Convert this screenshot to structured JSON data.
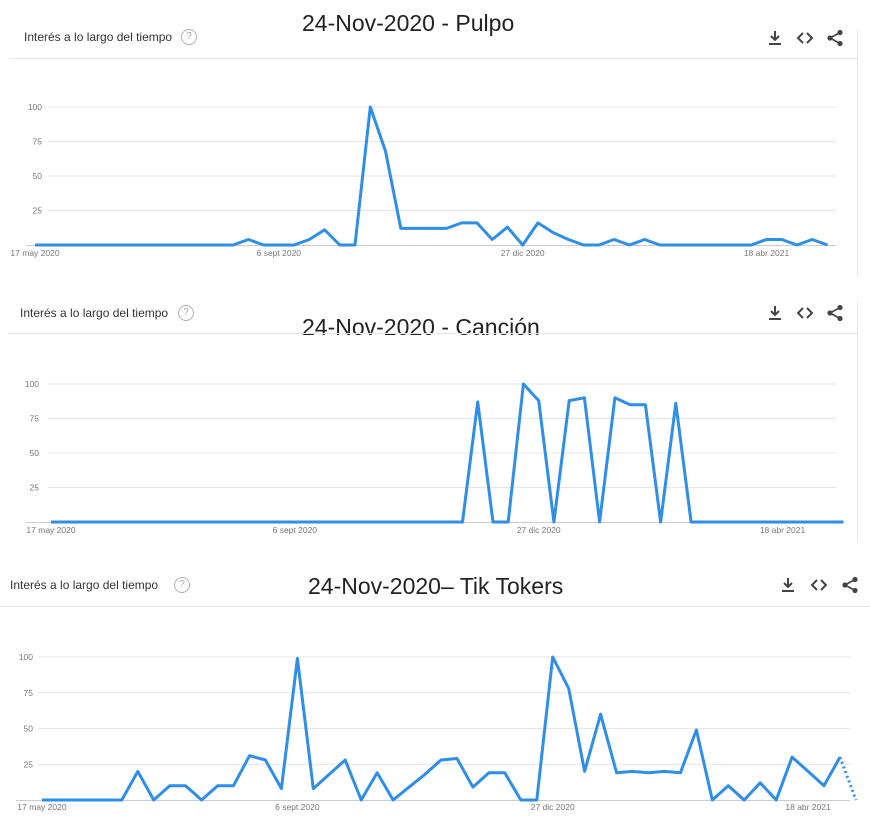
{
  "colors": {
    "line": "#2f8ee8",
    "grid": "#e6e6e6",
    "text": "#333333",
    "tick": "#777777"
  },
  "icons": [
    "download-icon",
    "embed-code-icon",
    "share-icon"
  ],
  "panels": [
    {
      "header": "Interés a lo largo del tiempo",
      "help": "?",
      "title": "24-Nov-2020 - Pulpo"
    },
    {
      "header": "Interés a lo largo del tiempo",
      "help": "?",
      "title": "24-Nov-2020 - Canción"
    },
    {
      "header": "Interés a lo largo del tiempo",
      "help": "?",
      "title": "24-Nov-2020– Tik Tokers"
    }
  ],
  "chart_data": [
    {
      "type": "line",
      "title": "24-Nov-2020 - Pulpo",
      "ylim": [
        0,
        100
      ],
      "yticks": [
        25,
        50,
        75,
        100
      ],
      "xticks": [
        "17 may 2020",
        "6 sept 2020",
        "27 dic 2020",
        "18 abr 2021"
      ],
      "xtick_index": [
        0,
        16,
        32,
        48
      ],
      "grid": true,
      "series": [
        {
          "values": [
            0,
            0,
            0,
            0,
            0,
            0,
            0,
            0,
            0,
            0,
            0,
            0,
            0,
            0,
            4,
            0,
            0,
            0,
            4,
            11,
            0,
            0,
            100,
            68,
            12,
            12,
            12,
            12,
            16,
            16,
            4,
            13,
            0,
            16,
            9,
            4,
            0,
            0,
            4,
            0,
            4,
            0,
            0,
            0,
            0,
            0,
            0,
            0,
            4,
            4,
            0,
            4,
            0
          ]
        }
      ]
    },
    {
      "type": "line",
      "title": "24-Nov-2020 - Canción",
      "ylim": [
        0,
        100
      ],
      "yticks": [
        25,
        50,
        75,
        100
      ],
      "xticks": [
        "17 may 2020",
        "6 sept 2020",
        "27 dic 2020",
        "18 abr 2021"
      ],
      "xtick_index": [
        0,
        16,
        32,
        48
      ],
      "grid": true,
      "series": [
        {
          "values": [
            0,
            0,
            0,
            0,
            0,
            0,
            0,
            0,
            0,
            0,
            0,
            0,
            0,
            0,
            0,
            0,
            0,
            0,
            0,
            0,
            0,
            0,
            0,
            0,
            0,
            0,
            0,
            0,
            87,
            0,
            0,
            100,
            88,
            0,
            88,
            90,
            0,
            90,
            85,
            85,
            0,
            86,
            0,
            0,
            0,
            0,
            0,
            0,
            0,
            0,
            0,
            0,
            0
          ]
        }
      ]
    },
    {
      "type": "line",
      "title": "24-Nov-2020– Tik Tokers",
      "ylim": [
        0,
        100
      ],
      "yticks": [
        25,
        50,
        75,
        100
      ],
      "xticks": [
        "17 may 2020",
        "6 sept 2020",
        "27 dic 2020",
        "18 abr 2021"
      ],
      "xtick_index": [
        0,
        16,
        32,
        48
      ],
      "grid": true,
      "series": [
        {
          "values": [
            0,
            0,
            0,
            0,
            0,
            0,
            20,
            0,
            10,
            10,
            0,
            10,
            10,
            31,
            28,
            8,
            99,
            8,
            18,
            28,
            0,
            19,
            0,
            9,
            18,
            28,
            29,
            9,
            19,
            19,
            0,
            0,
            100,
            78,
            20,
            60,
            19,
            20,
            19,
            20,
            19,
            49,
            0,
            10,
            0,
            12,
            0,
            30,
            20,
            10,
            30,
            0
          ]
        }
      ]
    }
  ]
}
